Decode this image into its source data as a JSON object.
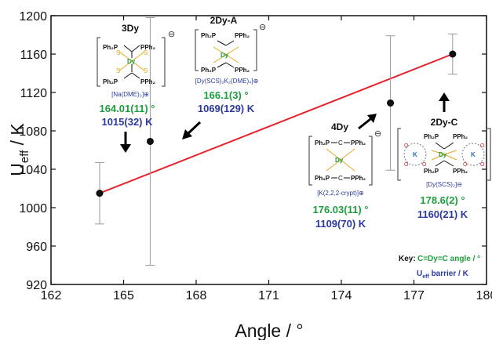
{
  "chart_data": {
    "type": "scatter",
    "xlabel": "Angle / °",
    "ylabel_main": "U",
    "ylabel_sub": "eff",
    "ylabel_tail": " / K",
    "xlim": [
      162,
      180
    ],
    "ylim": [
      920,
      1200
    ],
    "xticks": [
      162,
      165,
      168,
      171,
      174,
      177,
      180
    ],
    "yticks": [
      920,
      960,
      1000,
      1040,
      1080,
      1120,
      1160,
      1200
    ],
    "grid": false,
    "points": [
      {
        "name": "3Dy",
        "x": 164.01,
        "y": 1015,
        "err": 32
      },
      {
        "name": "2Dy-A",
        "x": 166.1,
        "y": 1069,
        "err": 129
      },
      {
        "name": "4Dy",
        "x": 176.03,
        "y": 1109,
        "err": 70
      },
      {
        "name": "2Dy-C",
        "x": 178.6,
        "y": 1160,
        "err": 21
      }
    ],
    "fit_line": {
      "x": [
        164.01,
        178.6
      ],
      "y": [
        1015,
        1160
      ],
      "color": "#e8202a"
    }
  },
  "annotations": {
    "c3dy": {
      "title": "3Dy",
      "counterion": "[Na(DME)₃]⊕",
      "angle": "164.01(11) °",
      "barrier": "1015(32) K"
    },
    "c2dya": {
      "title": "2Dy-A",
      "counterion": "[Dy(SCS)₂K₂(DME)₄]⊕",
      "angle": "166.1(3) °",
      "barrier": "1069(129) K"
    },
    "c4dy": {
      "title": "4Dy",
      "counterion": "[K(2,2,2-crypt)]⊕",
      "angle": "176.03(11) °",
      "barrier": "1109(70) K"
    },
    "c2dyc": {
      "title": "2Dy-C",
      "counterion": "[Dy(SCS)₂]⊖",
      "angle": "178.6(2) °",
      "barrier": "1160(21) K"
    }
  },
  "structure_labels": {
    "ph2p": "Ph₂P",
    "pph2": "PPh₂",
    "s": "S",
    "c": "C",
    "dy": "Dy",
    "k": "K",
    "o": "O",
    "minus": "⊖"
  },
  "key": {
    "label": "Key:",
    "angle_text": "C=Dy=C angle / °",
    "barrier_main": "U",
    "barrier_sub": "eff",
    "barrier_tail": " barrier / K"
  },
  "colors": {
    "angle": "#1e9e3e",
    "barrier": "#2b3a9c",
    "fit": "#e8202a",
    "phosphorus": "#b030b0",
    "sulfur": "#e8a81c",
    "dysprosium": "#1e9e3e",
    "potassium": "#2b6cc8",
    "oxygen": "#d02020"
  }
}
